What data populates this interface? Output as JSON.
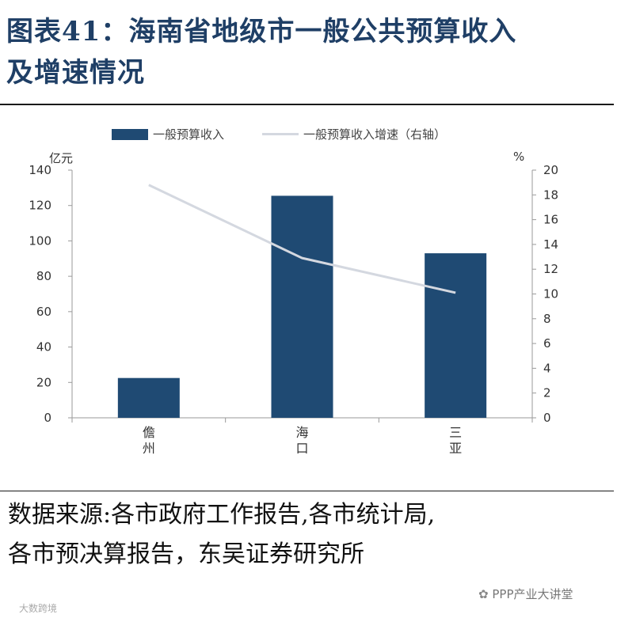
{
  "header": {
    "title_line1": "图表41：海南省地级市一般公共预算收入",
    "title_line2": "及增速情况"
  },
  "chart_data": {
    "type": "bar",
    "categories": [
      "儋州",
      "海口",
      "三亚"
    ],
    "category_lines": [
      [
        "儋",
        "州"
      ],
      [
        "海",
        "口"
      ],
      [
        "三",
        "亚"
      ]
    ],
    "series": [
      {
        "name": "一般预算收入",
        "type": "bar",
        "axis": "left",
        "values": [
          22.5,
          125.5,
          93.0
        ],
        "color": "#1f4a73"
      },
      {
        "name": "一般预算收入增速（右轴）",
        "type": "line",
        "axis": "right",
        "values": [
          18.8,
          12.9,
          10.1
        ],
        "color": "#d4d8e0"
      }
    ],
    "y_left": {
      "label": "亿元",
      "lim": [
        0,
        140
      ],
      "ticks": [
        0,
        20,
        40,
        60,
        80,
        100,
        120,
        140
      ]
    },
    "y_right": {
      "label": "%",
      "lim": [
        0,
        20
      ],
      "ticks": [
        0,
        2,
        4,
        6,
        8,
        10,
        12,
        14,
        16,
        18,
        20
      ]
    },
    "legend_position": "top",
    "grid": false
  },
  "footer": {
    "source_line1": "数据来源:各市政府工作报告,各市统计局,",
    "source_line2": "各市预决算报告，东吴证券研究所"
  },
  "watermarks": {
    "right": "PPP产业大讲堂",
    "left": "大数跨境"
  }
}
